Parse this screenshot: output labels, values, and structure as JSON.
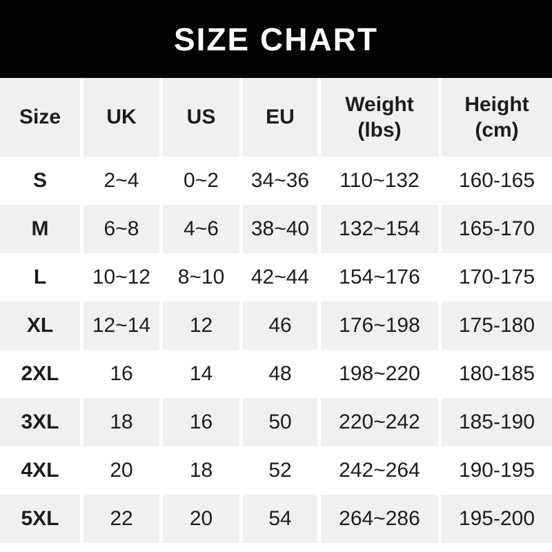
{
  "chart_data": {
    "type": "table",
    "title": "SIZE CHART",
    "columns": [
      "Size",
      "UK",
      "US",
      "EU",
      "Weight (lbs)",
      "Height (cm)"
    ],
    "header_lines": [
      [
        "Size"
      ],
      [
        "UK"
      ],
      [
        "US"
      ],
      [
        "EU"
      ],
      [
        "Weight",
        "(lbs)"
      ],
      [
        "Height",
        "(cm)"
      ]
    ],
    "rows": [
      [
        "S",
        "2~4",
        "0~2",
        "34~36",
        "110~132",
        "160-165"
      ],
      [
        "M",
        "6~8",
        "4~6",
        "38~40",
        "132~154",
        "165-170"
      ],
      [
        "L",
        "10~12",
        "8~10",
        "42~44",
        "154~176",
        "170-175"
      ],
      [
        "XL",
        "12~14",
        "12",
        "46",
        "176~198",
        "175-180"
      ],
      [
        "2XL",
        "16",
        "14",
        "48",
        "198~220",
        "180-185"
      ],
      [
        "3XL",
        "18",
        "16",
        "50",
        "220~242",
        "185-190"
      ],
      [
        "4XL",
        "20",
        "18",
        "52",
        "242~264",
        "190-195"
      ],
      [
        "5XL",
        "22",
        "20",
        "54",
        "264~286",
        "195-200"
      ]
    ],
    "layout": {
      "striped_rows": "header, M, XL, 3XL, 5XL",
      "grid": "white 5px column gutters, no visible borders"
    }
  },
  "colors": {
    "banner_bg": "#030303",
    "banner_text": "#ffffff",
    "row_stripe": "#f0f0f0",
    "row_plain": "#ffffff",
    "cell_text": "#1c1c1e"
  }
}
